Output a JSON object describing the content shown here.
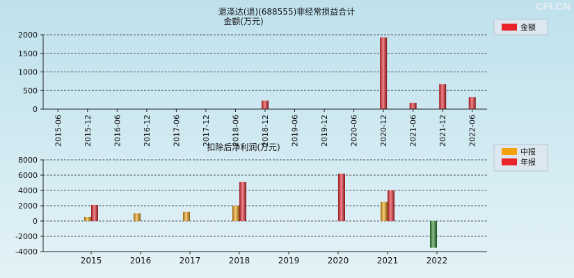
{
  "brand": "CFi.CN",
  "charts": [
    {
      "title_line1": "退泽达(退)(688555)非经常损益合计",
      "title_line2": "金额(万元)",
      "legend": [
        "金额"
      ],
      "colors": {
        "bar": "#e8232a"
      }
    },
    {
      "title": "扣除后净利润(万元)",
      "legend": [
        "中报",
        "年报"
      ],
      "colors": {
        "mid": "#f2a20c",
        "annual": "#e8232a",
        "negative": "#2e8b2e"
      }
    }
  ],
  "chart_data": [
    {
      "type": "bar",
      "categories": [
        "2015-06",
        "2015-12",
        "2016-06",
        "2016-12",
        "2017-06",
        "2017-12",
        "2018-06",
        "2018-12",
        "2019-06",
        "2019-12",
        "2020-06",
        "2020-12",
        "2021-06",
        "2021-12",
        "2022-06"
      ],
      "series": [
        {
          "name": "金额",
          "values": [
            0,
            0,
            0,
            0,
            0,
            0,
            0,
            230,
            0,
            0,
            0,
            1930,
            170,
            670,
            320
          ]
        }
      ],
      "yticks": [
        0,
        500,
        1000,
        1500,
        2000
      ],
      "ylim": [
        0,
        2000
      ],
      "title": "退泽达(退)(688555)非经常损益合计",
      "ylabel": "金额(万元)",
      "legend_position": "top-right",
      "grid": true
    },
    {
      "type": "bar",
      "categories": [
        "2015",
        "2016",
        "2017",
        "2018",
        "2019",
        "2020",
        "2021",
        "2022"
      ],
      "series": [
        {
          "name": "中报",
          "values": [
            550,
            1000,
            1200,
            2000,
            null,
            null,
            2500,
            -3500
          ]
        },
        {
          "name": "年报",
          "values": [
            2100,
            null,
            null,
            5100,
            null,
            6200,
            4000,
            null
          ]
        }
      ],
      "yticks": [
        -4000,
        -2000,
        0,
        2000,
        4000,
        6000,
        8000
      ],
      "ylim": [
        -4000,
        8000
      ],
      "title": "扣除后净利润(万元)",
      "legend_position": "top-right",
      "grid": true
    }
  ]
}
